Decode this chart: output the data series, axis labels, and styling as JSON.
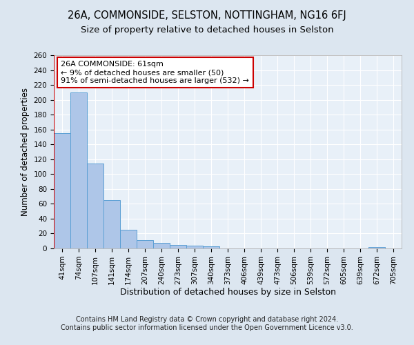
{
  "title_line1": "26A, COMMONSIDE, SELSTON, NOTTINGHAM, NG16 6FJ",
  "title_line2": "Size of property relative to detached houses in Selston",
  "xlabel": "Distribution of detached houses by size in Selston",
  "ylabel": "Number of detached properties",
  "categories": [
    "41sqm",
    "74sqm",
    "107sqm",
    "141sqm",
    "174sqm",
    "207sqm",
    "240sqm",
    "273sqm",
    "307sqm",
    "340sqm",
    "373sqm",
    "406sqm",
    "439sqm",
    "473sqm",
    "506sqm",
    "539sqm",
    "572sqm",
    "605sqm",
    "639sqm",
    "672sqm",
    "705sqm"
  ],
  "values": [
    155,
    210,
    114,
    65,
    25,
    11,
    7,
    5,
    4,
    3,
    0,
    0,
    0,
    0,
    0,
    0,
    0,
    0,
    0,
    2,
    0
  ],
  "bar_color": "#aec6e8",
  "bar_edge_color": "#5a9fd4",
  "bar_edge_width": 0.7,
  "vline_color": "#cc0000",
  "annotation_text": "26A COMMONSIDE: 61sqm\n← 9% of detached houses are smaller (50)\n91% of semi-detached houses are larger (532) →",
  "annotation_box_color": "#ffffff",
  "annotation_box_edge_color": "#cc0000",
  "ylim": [
    0,
    260
  ],
  "yticks": [
    0,
    20,
    40,
    60,
    80,
    100,
    120,
    140,
    160,
    180,
    200,
    220,
    240,
    260
  ],
  "background_color": "#dce6f0",
  "plot_bg_color": "#e8f0f8",
  "grid_color": "#ffffff",
  "footer_text": "Contains HM Land Registry data © Crown copyright and database right 2024.\nContains public sector information licensed under the Open Government Licence v3.0.",
  "title_fontsize": 10.5,
  "subtitle_fontsize": 9.5,
  "ylabel_fontsize": 8.5,
  "xlabel_fontsize": 9,
  "tick_fontsize": 7.5,
  "annotation_fontsize": 8,
  "footer_fontsize": 7
}
